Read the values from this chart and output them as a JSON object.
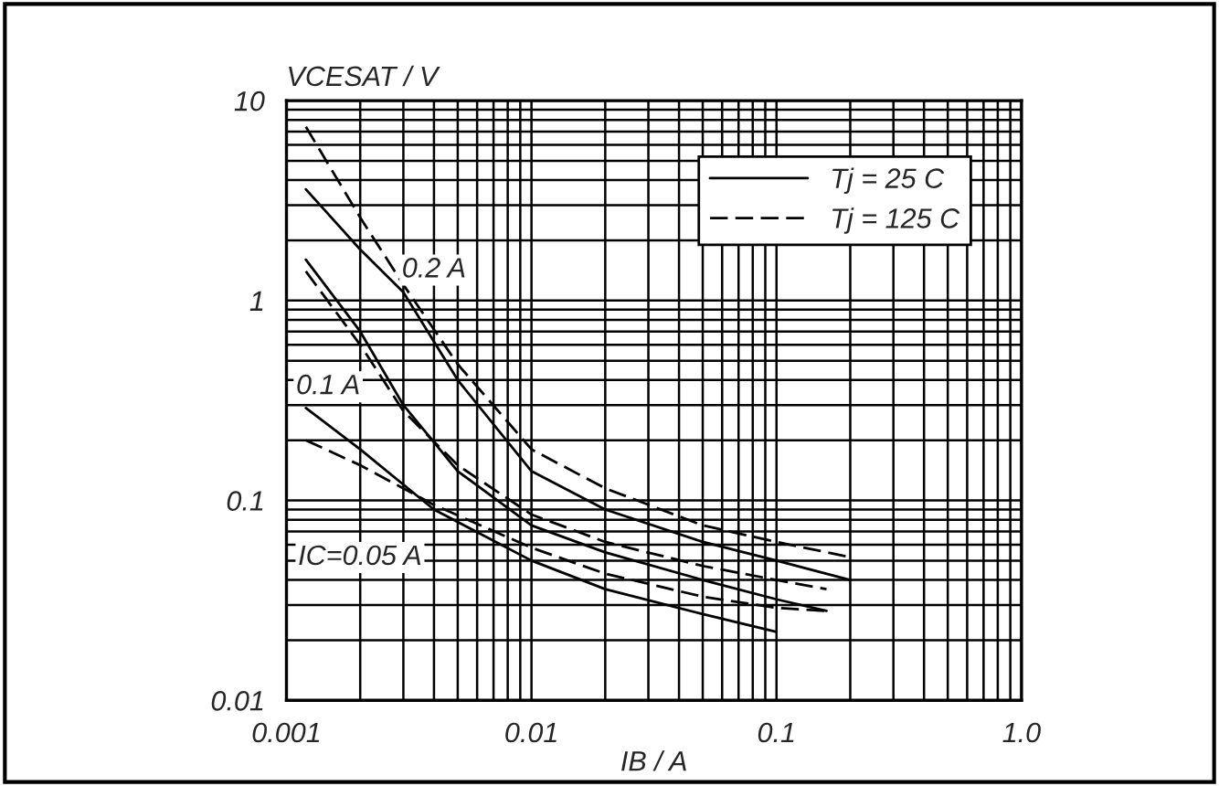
{
  "chart_data": {
    "type": "line",
    "xlabel": "IB / A",
    "ylabel": "VCESAT / V",
    "log": "xy",
    "xlim": [
      0.001,
      1.0
    ],
    "ylim": [
      0.01,
      10
    ],
    "xticks": [
      0.001,
      0.01,
      0.1,
      {
        "value": 1.0,
        "label": "1.0"
      }
    ],
    "yticks": [
      0.01,
      0.1,
      1,
      10
    ],
    "grid": true,
    "legend": "top right",
    "marker": "none",
    "series": [
      {
        "name": "Tj = 25 C",
        "color": "#000000",
        "line_style": "solid",
        "x": [
          0.0012,
          0.002,
          0.003,
          0.005,
          0.01,
          0.02,
          0.05,
          0.1,
          0.2
        ],
        "values": [
          3.6,
          1.8,
          1.1,
          0.4,
          0.14,
          0.09,
          0.062,
          0.05,
          0.04
        ]
      },
      {
        "name": "Tj = 125 C",
        "color": "#000000",
        "line_style": "dashed",
        "x": [
          0.0012,
          0.002,
          0.003,
          0.005,
          0.01,
          0.02,
          0.05,
          0.1,
          0.2
        ],
        "values": [
          7.4,
          2.6,
          1.2,
          0.48,
          0.18,
          0.115,
          0.075,
          0.062,
          0.052
        ]
      },
      {
        "color": "#000000",
        "line_style": "solid",
        "x": [
          0.0012,
          0.002,
          0.003,
          0.005,
          0.01,
          0.02,
          0.05,
          0.1,
          0.16
        ],
        "values": [
          1.6,
          0.7,
          0.3,
          0.14,
          0.075,
          0.055,
          0.04,
          0.032,
          0.028
        ]
      },
      {
        "color": "#000000",
        "line_style": "dashed",
        "x": [
          0.0012,
          0.002,
          0.003,
          0.005,
          0.01,
          0.02,
          0.05,
          0.1,
          0.16
        ],
        "values": [
          1.4,
          0.6,
          0.28,
          0.15,
          0.085,
          0.062,
          0.047,
          0.04,
          0.036
        ]
      },
      {
        "color": "#000000",
        "line_style": "solid",
        "x": [
          0.0012,
          0.002,
          0.004,
          0.01,
          0.02,
          0.05,
          0.1
        ],
        "values": [
          0.29,
          0.18,
          0.09,
          0.05,
          0.036,
          0.027,
          0.022
        ]
      },
      {
        "color": "#000000",
        "line_style": "dashed",
        "x": [
          0.0012,
          0.002,
          0.004,
          0.01,
          0.02,
          0.05,
          0.1,
          0.16
        ],
        "values": [
          0.2,
          0.15,
          0.095,
          0.058,
          0.043,
          0.033,
          0.029,
          0.028
        ]
      }
    ],
    "annotations": [
      {
        "text": "0.2 A",
        "x": 0.004,
        "y": 1.42
      },
      {
        "text": "0.1 A",
        "x": 0.00148,
        "y": 0.37
      },
      "IC=0.05 A"
    ]
  }
}
